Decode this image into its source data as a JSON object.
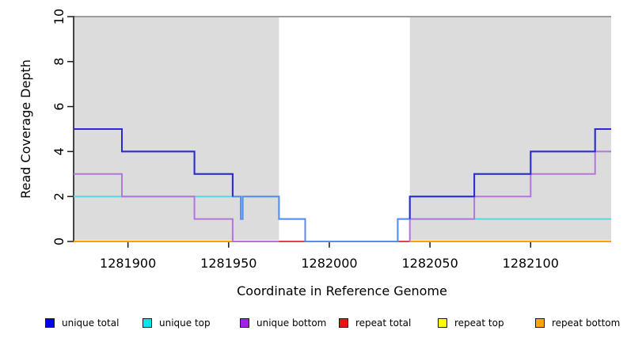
{
  "chart_data": {
    "type": "line",
    "subtype": "step-coverage",
    "title": "",
    "xlabel": "Coordinate in Reference Genome",
    "ylabel": "Read Coverage Depth",
    "xlim": [
      1281873,
      1282140
    ],
    "ylim": [
      0,
      10
    ],
    "xticks": [
      1281900,
      1281950,
      1282000,
      1282050,
      1282100
    ],
    "yticks": [
      0,
      2,
      4,
      6,
      8,
      10
    ],
    "grid": false,
    "background_color": "#ffffff",
    "axis_color": "#1a1a1a",
    "shaded_regions": [
      {
        "x1": 1281873,
        "x2": 1281975,
        "color": "#dcdcdc"
      },
      {
        "x1": 1282040,
        "x2": 1282140,
        "color": "#dcdcdc"
      }
    ],
    "ceiling_line": {
      "y": 10,
      "color": "#8f8f8f"
    },
    "draw_order": [
      4,
      3,
      5,
      1,
      2,
      0
    ],
    "series": [
      {
        "name": "unique total",
        "color": "#2b2bd0",
        "overlap_color": "#5a8cf0",
        "points": [
          [
            1281873,
            5
          ],
          [
            1281897,
            4
          ],
          [
            1281933,
            3
          ],
          [
            1281952,
            2
          ],
          [
            1281956,
            1
          ],
          [
            1281957,
            2
          ],
          [
            1281975,
            1
          ],
          [
            1281988,
            0
          ],
          [
            1282034,
            1
          ],
          [
            1282040,
            2
          ],
          [
            1282072,
            3
          ],
          [
            1282100,
            4
          ],
          [
            1282132,
            5
          ],
          [
            1282140,
            5
          ]
        ]
      },
      {
        "name": "unique top",
        "color": "#53dada",
        "points": [
          [
            1281873,
            2
          ],
          [
            1281956,
            1
          ],
          [
            1281957,
            2
          ],
          [
            1281975,
            1
          ],
          [
            1281988,
            0
          ],
          [
            1282034,
            1
          ],
          [
            1282140,
            1
          ]
        ]
      },
      {
        "name": "unique bottom",
        "color": "#b376da",
        "segments": [
          [
            [
              1281873,
              3
            ],
            [
              1281897,
              2
            ],
            [
              1281933,
              1
            ],
            [
              1281952,
              0
            ],
            [
              1281975,
              0
            ]
          ],
          [
            [
              1282040,
              0
            ],
            [
              1282040,
              1
            ],
            [
              1282072,
              2
            ],
            [
              1282100,
              3
            ],
            [
              1282132,
              4
            ],
            [
              1282140,
              4
            ]
          ]
        ]
      },
      {
        "name": "repeat total",
        "color": "#e04051",
        "points": [
          [
            1281952,
            0
          ],
          [
            1282040,
            0
          ]
        ]
      },
      {
        "name": "repeat top",
        "color": "#ffff00",
        "points": [
          [
            1281873,
            0
          ],
          [
            1282140,
            0
          ]
        ]
      },
      {
        "name": "repeat bottom",
        "color": "#ff9e00",
        "segments": [
          [
            [
              1281873,
              0
            ],
            [
              1281975,
              0
            ]
          ],
          [
            [
              1282040,
              0
            ],
            [
              1282140,
              0
            ]
          ]
        ]
      }
    ],
    "legend": {
      "position": "bottom",
      "items": [
        {
          "label": "unique total",
          "color": "#0000f0"
        },
        {
          "label": "unique top",
          "color": "#00e8ee"
        },
        {
          "label": "unique bottom",
          "color": "#a020f0"
        },
        {
          "label": "repeat total",
          "color": "#f01010"
        },
        {
          "label": "repeat top",
          "color": "#ffff00"
        },
        {
          "label": "repeat bottom",
          "color": "#ffa500"
        }
      ]
    }
  }
}
